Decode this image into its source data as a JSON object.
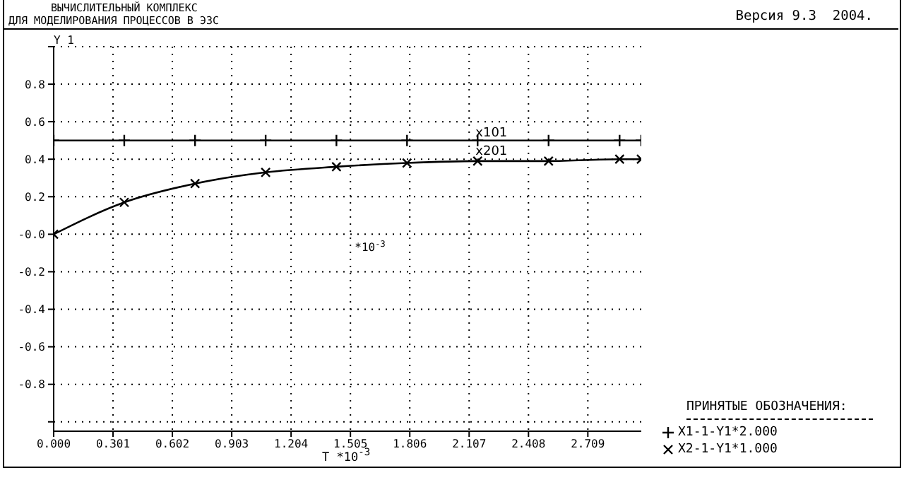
{
  "chart_data": {
    "type": "line",
    "title": "ВЫЧИСЛИТЕЛЬНЫЙ КОМПЛЕКС\nДЛЯ МОДЕЛИРОВАНИЯ ПРОЦЕССОВ В ЭЗС",
    "subtitle": "Версия 9.3  2004.",
    "xlabel": "T *10$^{-3}$",
    "ylabel": "Y 1",
    "legend_title": "ПРИНЯТЫЕ ОБОЗНАЧЕНИЯ:",
    "legend": "bottom right",
    "grid": true,
    "line_style": "solid",
    "annotations": [
      {
        "text": "x101",
        "x": 2.22,
        "y": 0.5
      },
      {
        "text": "x201",
        "x": 2.22,
        "y": 0.4
      },
      "*10$^{-3}$"
    ],
    "xlim": [
      0,
      2.98
    ],
    "ylim": [
      -1.05,
      1.0
    ],
    "xticks": [
      {
        "value": 0,
        "label": "0.000"
      },
      {
        "value": 0.301,
        "label": "0.301"
      },
      {
        "value": 0.602,
        "label": "0.602"
      },
      {
        "value": 0.903,
        "label": "0.903"
      },
      {
        "value": 1.204,
        "label": "1.204"
      },
      {
        "value": 1.505,
        "label": "1.505"
      },
      {
        "value": 1.806,
        "label": "1.806"
      },
      {
        "value": 2.107,
        "label": "2.107"
      },
      {
        "value": 2.408,
        "label": "2.408"
      },
      {
        "value": 2.709,
        "label": "2.709"
      }
    ],
    "yticks": [
      {
        "value": 1.0,
        "label": null
      },
      {
        "value": 0.8,
        "label": "0.8"
      },
      {
        "value": 0.6,
        "label": "0.6"
      },
      {
        "value": 0.4,
        "label": "0.4"
      },
      {
        "value": 0.2,
        "label": "0.2"
      },
      {
        "value": 0,
        "label": "-0.0"
      },
      {
        "value": -0.2,
        "label": "-0.2"
      },
      {
        "value": -0.4,
        "label": "-0.4"
      },
      {
        "value": -0.6,
        "label": "-0.6"
      },
      {
        "value": -0.8,
        "label": "-0.8"
      },
      {
        "value": -1.0,
        "label": null
      }
    ],
    "series": [
      {
        "name": "X1-1-Y1*2.000",
        "color": "#000000",
        "marker": "plus",
        "x": [
          0,
          0.358,
          0.717,
          1.075,
          1.434,
          1.792,
          2.15,
          2.51,
          2.87,
          2.98
        ],
        "values": [
          0.5,
          0.5,
          0.5,
          0.5,
          0.5,
          0.5,
          0.5,
          0.5,
          0.5,
          0.5
        ]
      },
      {
        "name": "X2-1-Y1*1.000",
        "color": "#000000",
        "marker": "cross",
        "x": [
          0,
          0.358,
          0.717,
          1.075,
          1.434,
          1.792,
          2.15,
          2.51,
          2.87,
          2.98
        ],
        "values": [
          0,
          0.17,
          0.27,
          0.33,
          0.36,
          0.38,
          0.39,
          0.39,
          0.4,
          0.4
        ]
      }
    ]
  }
}
